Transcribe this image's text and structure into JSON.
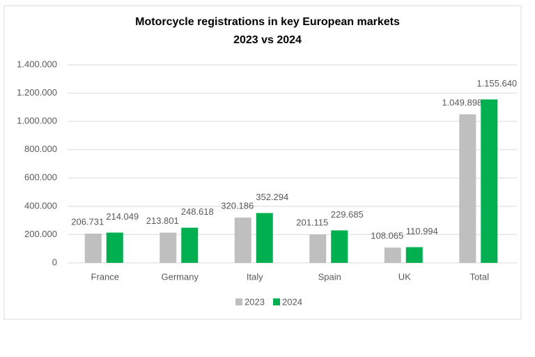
{
  "chart_data": {
    "type": "bar",
    "title": "Motorcycle registrations in key European markets",
    "subtitle": "2023 vs 2024",
    "categories": [
      "France",
      "Germany",
      "Italy",
      "Spain",
      "UK",
      "Total"
    ],
    "series": [
      {
        "name": "2023",
        "color": "#bfbfbf",
        "values": [
          206731,
          213801,
          320186,
          201115,
          108065,
          1049898
        ],
        "value_labels": [
          "206.731",
          "213.801",
          "320.186",
          "201.115",
          "108.065",
          "1.049.898"
        ]
      },
      {
        "name": "2024",
        "color": "#00b050",
        "values": [
          214049,
          248618,
          352294,
          229685,
          110994,
          1155640
        ],
        "value_labels": [
          "214.049",
          "248.618",
          "352.294",
          "229.685",
          "110.994",
          "1.155.640"
        ]
      }
    ],
    "ylim": [
      0,
      1400000
    ],
    "yticks": [
      0,
      {
        "value": 200000,
        "label": "200.000"
      },
      {
        "value": 400000,
        "label": "400.000"
      },
      {
        "value": 600000,
        "label": "600.000"
      },
      {
        "value": 800000,
        "label": "800.000"
      },
      {
        "value": 1000000,
        "label": "1.000.000"
      },
      {
        "value": 1200000,
        "label": "1.200.000"
      },
      {
        "value": 1400000,
        "label": "1.400.000"
      }
    ],
    "grid": true,
    "legend": "bottom"
  }
}
